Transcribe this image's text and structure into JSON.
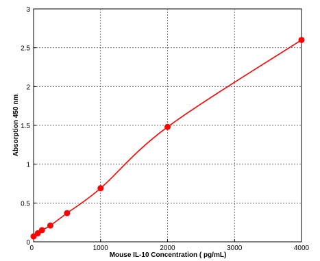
{
  "chart_data": {
    "type": "scatter",
    "title": "",
    "xlabel": "Mouse IL-10 Concentration ( pg/mL)",
    "ylabel": "Absorption 450 nm",
    "xlim": [
      0,
      4000
    ],
    "ylim": [
      0,
      3
    ],
    "x_ticks": [
      0,
      1000,
      2000,
      3000,
      4000
    ],
    "x_tick_labels": [
      "0",
      "1000",
      "2000",
      "3000",
      "4000"
    ],
    "y_ticks": [
      0,
      0.5,
      1,
      1.5,
      2,
      2.5,
      3
    ],
    "y_tick_labels": [
      "0",
      "0.5",
      "1",
      "1.5",
      "2",
      "2.5",
      "3"
    ],
    "grid": true,
    "grid_style": "dashed",
    "legend": "none",
    "marker_color": "#ff0000",
    "curve_color": "#ff0000",
    "series": [
      {
        "points": [
          {
            "x": 0,
            "y": 0.07
          },
          {
            "x": 62.5,
            "y": 0.11
          },
          {
            "x": 125,
            "y": 0.15
          },
          {
            "x": 250,
            "y": 0.21
          },
          {
            "x": 500,
            "y": 0.37
          },
          {
            "x": 1000,
            "y": 0.69
          },
          {
            "x": 2000,
            "y": 1.48
          },
          {
            "x": 4000,
            "y": 2.6
          }
        ]
      }
    ]
  }
}
